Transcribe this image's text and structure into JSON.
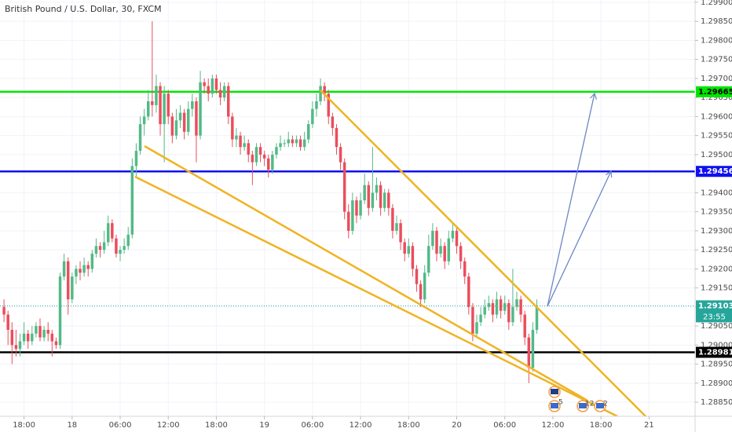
{
  "chart_data": {
    "type": "candlestick",
    "title": "British Pound / U.S. Dollar, 30, FXCM",
    "open": [
      1.291,
      1.2908,
      1.2904,
      1.29,
      1.2899,
      1.2901,
      1.2903,
      1.2901,
      1.2903,
      1.2905,
      1.2902,
      1.2904,
      1.2903,
      1.2901,
      1.29,
      1.2918,
      1.2922,
      1.2912,
      1.2918,
      1.292,
      1.2919,
      1.2921,
      1.292,
      1.2924,
      1.2926,
      1.2925,
      1.2927,
      1.2932,
      1.2928,
      1.2924,
      1.2925,
      1.2926,
      1.2929,
      1.2947,
      1.2951,
      1.2958,
      1.296,
      1.2964,
      1.2963,
      1.2968,
      1.2958,
      1.2966,
      1.296,
      1.2955,
      1.2959,
      1.2961,
      1.2956,
      1.2962,
      1.2964,
      1.2955,
      1.2969,
      1.2968,
      1.2966,
      1.297,
      1.2967,
      1.2965,
      1.2968,
      1.296,
      1.2954,
      1.2955,
      1.2952,
      1.2953,
      1.295,
      1.2948,
      1.2952,
      1.295,
      1.2949,
      1.2946,
      1.295,
      1.2952,
      1.2953,
      1.2953,
      1.2954,
      1.2953,
      1.2954,
      1.2952,
      1.2954,
      1.2958,
      1.2962,
      1.2964,
      1.2968,
      1.2966,
      1.296,
      1.2957,
      1.2952,
      1.2948,
      1.2935,
      1.293,
      1.2938,
      1.2934,
      1.2938,
      1.2942,
      1.2936,
      1.294,
      1.2942,
      1.2936,
      1.294,
      1.2936,
      1.293,
      1.2932,
      1.2927,
      1.2924,
      1.2926,
      1.292,
      1.2916,
      1.2912,
      1.2919,
      1.2926,
      1.293,
      1.2924,
      1.2926,
      1.2922,
      1.2928,
      1.293,
      1.2926,
      1.2922,
      1.2918,
      1.291,
      1.2903,
      1.2906,
      1.2908,
      1.291,
      1.2911,
      1.2908,
      1.2912,
      1.2909,
      1.2911,
      1.2906,
      1.291,
      1.2912,
      1.2908,
      1.2902,
      1.2894,
      1.2904
    ],
    "high": [
      1.2912,
      1.2909,
      1.2906,
      1.2904,
      1.2903,
      1.2906,
      1.2904,
      1.2905,
      1.2906,
      1.2907,
      1.2905,
      1.2906,
      1.2904,
      1.2902,
      1.2919,
      1.2924,
      1.2923,
      1.2919,
      1.2921,
      1.2922,
      1.2923,
      1.2922,
      1.2925,
      1.2928,
      1.2927,
      1.293,
      1.2934,
      1.2933,
      1.2929,
      1.2926,
      1.2928,
      1.2931,
      1.2949,
      1.2953,
      1.296,
      1.2962,
      1.2967,
      1.2985,
      1.2971,
      1.2969,
      1.2968,
      1.2967,
      1.2961,
      1.2962,
      1.2963,
      1.2962,
      1.2964,
      1.2966,
      1.2965,
      1.2972,
      1.297,
      1.297,
      1.2971,
      1.2971,
      1.2969,
      1.2969,
      1.2969,
      1.2961,
      1.2957,
      1.2956,
      1.2955,
      1.2954,
      1.2951,
      1.2953,
      1.2953,
      1.2951,
      1.295,
      1.2951,
      1.2953,
      1.2955,
      1.2954,
      1.2956,
      1.2955,
      1.2955,
      1.2955,
      1.2956,
      1.2959,
      1.2964,
      1.2966,
      1.297,
      1.2969,
      1.2967,
      1.2961,
      1.2958,
      1.2953,
      1.2949,
      1.2937,
      1.294,
      1.2939,
      1.294,
      1.2945,
      1.2943,
      1.2952,
      1.2944,
      1.2943,
      1.2941,
      1.2941,
      1.2937,
      1.2934,
      1.2933,
      1.2928,
      1.2928,
      1.2927,
      1.2921,
      1.2917,
      1.2921,
      1.2929,
      1.2932,
      1.2931,
      1.2928,
      1.2927,
      1.293,
      1.2932,
      1.2931,
      1.2927,
      1.2923,
      1.2919,
      1.2911,
      1.2908,
      1.291,
      1.2912,
      1.2913,
      1.2912,
      1.2914,
      1.2913,
      1.2913,
      1.2912,
      1.292,
      1.2914,
      1.2913,
      1.2909,
      1.2903,
      1.2906,
      1.2912
    ],
    "low": [
      1.2906,
      1.29,
      1.2895,
      1.2897,
      1.2897,
      1.29,
      1.2899,
      1.29,
      1.2902,
      1.2901,
      1.2901,
      1.2901,
      1.2897,
      1.2899,
      1.2899,
      1.2917,
      1.2908,
      1.2911,
      1.2916,
      1.2917,
      1.2918,
      1.2918,
      1.2919,
      1.2923,
      1.2923,
      1.2924,
      1.2926,
      1.2927,
      1.2923,
      1.2922,
      1.2924,
      1.2925,
      1.2928,
      1.2944,
      1.295,
      1.2955,
      1.2959,
      1.296,
      1.2961,
      1.2955,
      1.2948,
      1.2958,
      1.2953,
      1.2954,
      1.2957,
      1.2954,
      1.2955,
      1.296,
      1.2948,
      1.2954,
      1.2966,
      1.2964,
      1.2965,
      1.2966,
      1.2963,
      1.2964,
      1.2958,
      1.2952,
      1.2952,
      1.295,
      1.2951,
      1.2948,
      1.2942,
      1.2947,
      1.2948,
      1.2947,
      1.2944,
      1.2945,
      1.2949,
      1.2951,
      1.2952,
      1.2952,
      1.2952,
      1.2952,
      1.2951,
      1.2951,
      1.2953,
      1.2957,
      1.296,
      1.2963,
      1.2964,
      1.2958,
      1.2955,
      1.295,
      1.2946,
      1.2933,
      1.2928,
      1.2929,
      1.2932,
      1.2933,
      1.2937,
      1.2934,
      1.2935,
      1.2938,
      1.2934,
      1.2935,
      1.2934,
      1.2928,
      1.2929,
      1.2925,
      1.2922,
      1.2923,
      1.2918,
      1.2914,
      1.291,
      1.2911,
      1.2918,
      1.2925,
      1.2922,
      1.2923,
      1.292,
      1.2921,
      1.2927,
      1.2924,
      1.292,
      1.2916,
      1.2908,
      1.2901,
      1.2902,
      1.2905,
      1.2907,
      1.2909,
      1.2906,
      1.2907,
      1.2907,
      1.2908,
      1.2904,
      1.2905,
      1.2909,
      1.2906,
      1.29,
      1.289,
      1.2893,
      1.2903
    ],
    "close": [
      1.2908,
      1.2904,
      1.29,
      1.2899,
      1.2901,
      1.2903,
      1.2901,
      1.2903,
      1.2905,
      1.2902,
      1.2904,
      1.2903,
      1.2901,
      1.29,
      1.2918,
      1.2922,
      1.2912,
      1.2918,
      1.292,
      1.2919,
      1.2921,
      1.292,
      1.2924,
      1.2926,
      1.2925,
      1.2927,
      1.2932,
      1.2928,
      1.2924,
      1.2925,
      1.2926,
      1.2929,
      1.2947,
      1.2951,
      1.2958,
      1.296,
      1.2964,
      1.2963,
      1.2968,
      1.2958,
      1.2966,
      1.296,
      1.2955,
      1.2959,
      1.2961,
      1.2956,
      1.2962,
      1.2964,
      1.2955,
      1.2969,
      1.2968,
      1.2966,
      1.297,
      1.2967,
      1.2965,
      1.2968,
      1.296,
      1.2954,
      1.2955,
      1.2952,
      1.2953,
      1.295,
      1.2948,
      1.2952,
      1.295,
      1.2949,
      1.2946,
      1.295,
      1.2952,
      1.2953,
      1.2953,
      1.2954,
      1.2953,
      1.2954,
      1.2952,
      1.2954,
      1.2958,
      1.2962,
      1.2964,
      1.2968,
      1.2966,
      1.296,
      1.2957,
      1.2952,
      1.2948,
      1.2935,
      1.293,
      1.2938,
      1.2934,
      1.2938,
      1.2942,
      1.2936,
      1.294,
      1.2942,
      1.2936,
      1.294,
      1.2936,
      1.293,
      1.2932,
      1.2927,
      1.2924,
      1.2926,
      1.292,
      1.2916,
      1.2912,
      1.2919,
      1.2926,
      1.293,
      1.2924,
      1.2926,
      1.2922,
      1.2928,
      1.293,
      1.2926,
      1.2922,
      1.2918,
      1.291,
      1.2903,
      1.2906,
      1.2908,
      1.291,
      1.2911,
      1.2908,
      1.2912,
      1.2909,
      1.2911,
      1.2906,
      1.291,
      1.2912,
      1.2908,
      1.2902,
      1.2894,
      1.2904,
      1.291
    ],
    "up_color": "#53b987",
    "down_color": "#eb4d5c",
    "xlim": [
      0,
      173.5
    ],
    "xticks": [
      {
        "value": 6,
        "label": "18:00"
      },
      {
        "value": 18,
        "label": "18"
      },
      {
        "value": 30,
        "label": "06:00"
      },
      {
        "value": 42,
        "label": "12:00"
      },
      {
        "value": 54,
        "label": "18:00"
      },
      {
        "value": 66,
        "label": "19"
      },
      {
        "value": 78,
        "label": "06:00"
      },
      {
        "value": 90,
        "label": "12:00"
      },
      {
        "value": 102,
        "label": "18:00"
      },
      {
        "value": 114,
        "label": "20"
      },
      {
        "value": 126,
        "label": "06:00"
      },
      {
        "value": 138,
        "label": "12:00"
      },
      {
        "value": 150,
        "label": "18:00"
      },
      {
        "value": 162,
        "label": "21"
      }
    ],
    "ylim": [
      1.28813,
      1.29906
    ],
    "yticks": [
      {
        "value": 1.2885,
        "label": "1.28850"
      },
      {
        "value": 1.289,
        "label": "1.28900"
      },
      {
        "value": 1.2895,
        "label": "1.28950"
      },
      {
        "value": 1.29,
        "label": "1.29000"
      },
      {
        "value": 1.2905,
        "label": "1.29050"
      },
      {
        "value": 1.291,
        "label": "1.29100"
      },
      {
        "value": 1.2915,
        "label": "1.29150"
      },
      {
        "value": 1.292,
        "label": "1.29200"
      },
      {
        "value": 1.2925,
        "label": "1.29250"
      },
      {
        "value": 1.293,
        "label": "1.29300"
      },
      {
        "value": 1.2935,
        "label": "1.29350"
      },
      {
        "value": 1.294,
        "label": "1.29400"
      },
      {
        "value": 1.2945,
        "label": "1.29450"
      },
      {
        "value": 1.295,
        "label": "1.29500"
      },
      {
        "value": 1.2955,
        "label": "1.29550"
      },
      {
        "value": 1.296,
        "label": "1.29600"
      },
      {
        "value": 1.2965,
        "label": "1.29650"
      },
      {
        "value": 1.297,
        "label": "1.29700"
      },
      {
        "value": 1.2975,
        "label": "1.29750"
      },
      {
        "value": 1.298,
        "label": "1.29800"
      },
      {
        "value": 1.2985,
        "label": "1.29850"
      },
      {
        "value": 1.299,
        "label": "1.29900"
      }
    ],
    "grid": true,
    "levels": [
      {
        "value": 1.29665,
        "color": "#00e600"
      },
      {
        "value": 1.29456,
        "color": "#1010ee"
      },
      {
        "value": 1.28981,
        "color": "#000000"
      }
    ],
    "last_price": 1.29103,
    "last_color": "#26a69a",
    "countdown": "23:55",
    "event_counts": [
      "5",
      "12",
      "2"
    ]
  }
}
